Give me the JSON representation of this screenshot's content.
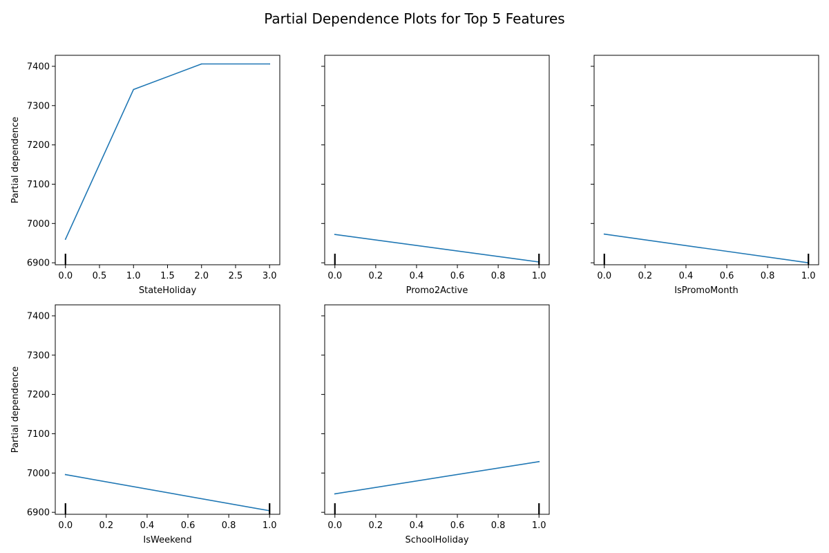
{
  "figure": {
    "title": "Partial Dependence Plots for Top 5 Features",
    "line_color": "#1f77b4",
    "rug_color": "#000000"
  },
  "chart_data": [
    {
      "type": "line",
      "xlabel": "StateHoliday",
      "ylabel": "Partial dependence",
      "x": [
        0,
        1,
        2,
        3
      ],
      "y": [
        6960,
        7341,
        7406,
        7406
      ],
      "xlim": [
        -0.15,
        3.15
      ],
      "ylim": [
        6895,
        7428
      ],
      "xticks": [
        0,
        0.5,
        1,
        1.5,
        2,
        2.5,
        3
      ],
      "xtick_labels": [
        "0.0",
        "0.5",
        "1.0",
        "1.5",
        "2.0",
        "2.5",
        "3.0"
      ],
      "yticks": [
        6900,
        7000,
        7100,
        7200,
        7300,
        7400
      ],
      "ytick_labels": [
        "6900",
        "7000",
        "7100",
        "7200",
        "7300",
        "7400"
      ],
      "rug": [
        0
      ]
    },
    {
      "type": "line",
      "xlabel": "Promo2Active",
      "ylabel": "",
      "x": [
        0,
        1
      ],
      "y": [
        6972,
        6902
      ],
      "xlim": [
        -0.05,
        1.05
      ],
      "ylim": [
        6895,
        7428
      ],
      "xticks": [
        0,
        0.2,
        0.4,
        0.6,
        0.8,
        1
      ],
      "xtick_labels": [
        "0.0",
        "0.2",
        "0.4",
        "0.6",
        "0.8",
        "1.0"
      ],
      "yticks": [
        6900,
        7000,
        7100,
        7200,
        7300,
        7400
      ],
      "ytick_labels": [],
      "rug": [
        0,
        1
      ]
    },
    {
      "type": "line",
      "xlabel": "IsPromoMonth",
      "ylabel": "",
      "x": [
        0,
        1
      ],
      "y": [
        6973,
        6900
      ],
      "xlim": [
        -0.05,
        1.05
      ],
      "ylim": [
        6895,
        7428
      ],
      "xticks": [
        0,
        0.2,
        0.4,
        0.6,
        0.8,
        1
      ],
      "xtick_labels": [
        "0.0",
        "0.2",
        "0.4",
        "0.6",
        "0.8",
        "1.0"
      ],
      "yticks": [
        6900,
        7000,
        7100,
        7200,
        7300,
        7400
      ],
      "ytick_labels": [],
      "rug": [
        0,
        1
      ]
    },
    {
      "type": "line",
      "xlabel": "IsWeekend",
      "ylabel": "Partial dependence",
      "x": [
        0,
        1
      ],
      "y": [
        6996,
        6904
      ],
      "xlim": [
        -0.05,
        1.05
      ],
      "ylim": [
        6895,
        7428
      ],
      "xticks": [
        0,
        0.2,
        0.4,
        0.6,
        0.8,
        1
      ],
      "xtick_labels": [
        "0.0",
        "0.2",
        "0.4",
        "0.6",
        "0.8",
        "1.0"
      ],
      "yticks": [
        6900,
        7000,
        7100,
        7200,
        7300,
        7400
      ],
      "ytick_labels": [
        "6900",
        "7000",
        "7100",
        "7200",
        "7300",
        "7400"
      ],
      "rug": [
        0,
        1
      ]
    },
    {
      "type": "line",
      "xlabel": "SchoolHoliday",
      "ylabel": "",
      "x": [
        0,
        1
      ],
      "y": [
        6947,
        7029
      ],
      "xlim": [
        -0.05,
        1.05
      ],
      "ylim": [
        6895,
        7428
      ],
      "xticks": [
        0,
        0.2,
        0.4,
        0.6,
        0.8,
        1
      ],
      "xtick_labels": [
        "0.0",
        "0.2",
        "0.4",
        "0.6",
        "0.8",
        "1.0"
      ],
      "yticks": [
        6900,
        7000,
        7100,
        7200,
        7300,
        7400
      ],
      "ytick_labels": [],
      "rug": [
        0,
        1
      ]
    }
  ]
}
